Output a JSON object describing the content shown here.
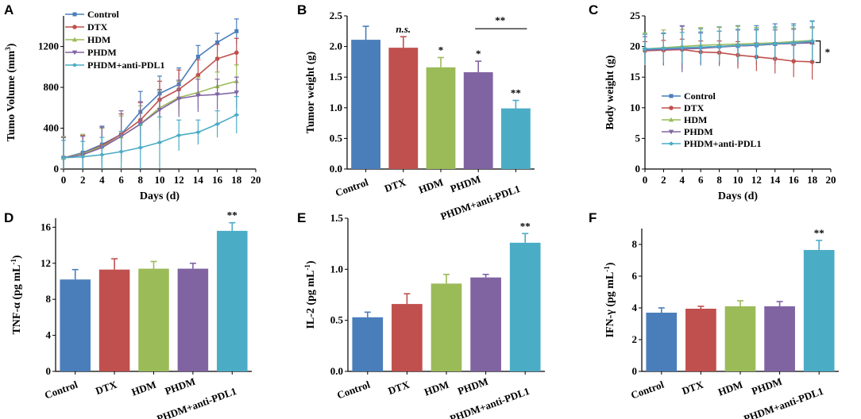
{
  "colors": {
    "Control": "#4a7ebb",
    "DTX": "#c0504d",
    "HDM": "#9bbb59",
    "PHDM": "#8064a2",
    "PHDM+anti-PDL1": "#4bacc6"
  },
  "chart_data": [
    {
      "panel": "A",
      "type": "line",
      "xlabel": "Days (d)",
      "ylabel": "Tumo Volume (mm3)",
      "xlim": [
        0,
        20
      ],
      "ylim": [
        0,
        1500
      ],
      "xticks": [
        0,
        2,
        4,
        6,
        8,
        10,
        12,
        14,
        16,
        18,
        20
      ],
      "yticks": [
        0,
        400,
        800,
        1200
      ],
      "x": [
        0,
        2,
        4,
        6,
        8,
        10,
        12,
        14,
        16,
        18
      ],
      "legend": "top-left",
      "series": [
        {
          "name": "Control",
          "values": [
            110,
            160,
            240,
            340,
            560,
            740,
            830,
            1100,
            1240,
            1350
          ],
          "errors": [
            200,
            170,
            180,
            200,
            200,
            170,
            160,
            110,
            90,
            120
          ]
        },
        {
          "name": "DTX",
          "values": [
            110,
            150,
            230,
            340,
            480,
            680,
            780,
            920,
            1080,
            1140
          ],
          "errors": [
            200,
            180,
            170,
            200,
            170,
            180,
            190,
            150,
            140,
            140
          ]
        },
        {
          "name": "HDM",
          "values": [
            110,
            150,
            220,
            320,
            440,
            600,
            700,
            750,
            810,
            860
          ],
          "errors": [
            210,
            190,
            180,
            200,
            180,
            170,
            160,
            150,
            140,
            160
          ]
        },
        {
          "name": "PHDM",
          "values": [
            110,
            140,
            210,
            320,
            440,
            580,
            690,
            720,
            730,
            750
          ],
          "errors": [
            200,
            180,
            200,
            250,
            220,
            200,
            180,
            160,
            150,
            150
          ]
        },
        {
          "name": "PHDM+anti-PDL1",
          "values": [
            110,
            120,
            140,
            170,
            210,
            260,
            330,
            360,
            440,
            530
          ],
          "errors": [
            170,
            150,
            170,
            200,
            230,
            250,
            150,
            120,
            130,
            180
          ]
        }
      ]
    },
    {
      "panel": "B",
      "type": "bar",
      "ylabel": "Tumor weight (g)",
      "ylim": [
        0,
        2.5
      ],
      "yticks": [
        "0.0",
        "0.5",
        "1.0",
        "1.5",
        "2.0",
        "2.5"
      ],
      "categories": [
        "Control",
        "DTX",
        "HDM",
        "PHDM",
        "PHDM+anti-PDL1"
      ],
      "values": [
        2.11,
        1.98,
        1.66,
        1.58,
        0.99
      ],
      "errors": [
        0.22,
        0.18,
        0.16,
        0.18,
        0.13
      ],
      "annotations": [
        "",
        "n.s.",
        "*",
        "*",
        "**"
      ],
      "bracket": {
        "from": "PHDM",
        "to": "PHDM+anti-PDL1",
        "label": "**"
      }
    },
    {
      "panel": "C",
      "type": "line",
      "xlabel": "Days (d)",
      "ylabel": "Body weight (g)",
      "xlim": [
        0,
        20
      ],
      "ylim": [
        0,
        25
      ],
      "xticks": [
        0,
        2,
        4,
        6,
        8,
        10,
        12,
        14,
        16,
        18,
        20
      ],
      "yticks": [
        0,
        5,
        10,
        15,
        20,
        25
      ],
      "x": [
        0,
        2,
        4,
        6,
        8,
        10,
        12,
        14,
        16,
        18
      ],
      "legend": "center-left",
      "bracket_label": "*",
      "series": [
        {
          "name": "Control",
          "values": [
            19.5,
            19.6,
            19.8,
            19.9,
            20.0,
            20.1,
            20.2,
            20.4,
            20.5,
            20.7
          ],
          "errors": [
            2.5,
            2.6,
            3.5,
            3.0,
            3.2,
            3.3,
            3.2,
            3.3,
            3.2,
            3.4
          ]
        },
        {
          "name": "DTX",
          "values": [
            19.3,
            19.4,
            19.5,
            19.1,
            19.0,
            18.6,
            18.3,
            18.0,
            17.6,
            17.5
          ],
          "errors": [
            1.5,
            1.6,
            1.7,
            1.8,
            1.9,
            2.2,
            2.3,
            2.4,
            2.6,
            2.9
          ]
        },
        {
          "name": "HDM",
          "values": [
            19.6,
            19.8,
            20.0,
            20.2,
            20.3,
            20.4,
            20.5,
            20.6,
            20.8,
            21.0
          ],
          "errors": [
            2.6,
            2.9,
            2.8,
            2.9,
            2.8,
            2.9,
            2.6,
            2.4,
            2.2,
            2.0
          ]
        },
        {
          "name": "PHDM",
          "values": [
            19.4,
            19.5,
            19.6,
            19.7,
            19.9,
            20.1,
            20.2,
            20.4,
            20.5,
            20.6
          ],
          "errors": [
            2.2,
            2.6,
            3.8,
            2.5,
            2.6,
            2.6,
            2.5,
            2.3,
            2.3,
            2.6
          ]
        },
        {
          "name": "PHDM+anti-PDL1",
          "values": [
            19.6,
            19.7,
            19.8,
            19.9,
            20.0,
            20.2,
            20.3,
            20.5,
            20.6,
            20.9
          ],
          "errors": [
            2.4,
            2.4,
            2.5,
            2.5,
            2.5,
            2.6,
            2.6,
            2.7,
            2.8,
            3.3
          ]
        }
      ]
    },
    {
      "panel": "D",
      "type": "bar",
      "ylabel": "TNF-α (pg mL-1)",
      "ylim": [
        0,
        17
      ],
      "yticks": [
        "0",
        "4",
        "8",
        "12",
        "16"
      ],
      "categories": [
        "Control",
        "DTX",
        "HDM",
        "PHDM",
        "PHDM+anti-PDL1"
      ],
      "values": [
        10.2,
        11.3,
        11.4,
        11.4,
        15.6
      ],
      "errors": [
        1.1,
        1.2,
        0.8,
        0.6,
        0.9
      ],
      "annotations": [
        "",
        "",
        "",
        "",
        "**"
      ]
    },
    {
      "panel": "E",
      "type": "bar",
      "ylabel": "IL-2 (pg mL-1)",
      "ylim": [
        0,
        1.5
      ],
      "yticks": [
        "0.0",
        "0.5",
        "1.0",
        "1.5"
      ],
      "categories": [
        "Control",
        "DTX",
        "HDM",
        "PHDM",
        "PHDM+anti-PDL1"
      ],
      "values": [
        0.53,
        0.66,
        0.86,
        0.92,
        1.26
      ],
      "errors": [
        0.05,
        0.1,
        0.09,
        0.03,
        0.09
      ],
      "annotations": [
        "",
        "",
        "",
        "",
        "**"
      ]
    },
    {
      "panel": "F",
      "type": "bar",
      "ylabel": "IFN-γ (pg mL-1)",
      "ylim": [
        0,
        9
      ],
      "yticks": [
        "0",
        "2",
        "4",
        "6",
        "8"
      ],
      "categories": [
        "Control",
        "DTX",
        "HDM",
        "PHDM",
        "PHDM+anti-PDL1"
      ],
      "values": [
        3.7,
        3.95,
        4.1,
        4.1,
        7.65
      ],
      "errors": [
        0.3,
        0.15,
        0.35,
        0.3,
        0.6
      ],
      "annotations": [
        "",
        "",
        "",
        "",
        "**"
      ]
    }
  ]
}
